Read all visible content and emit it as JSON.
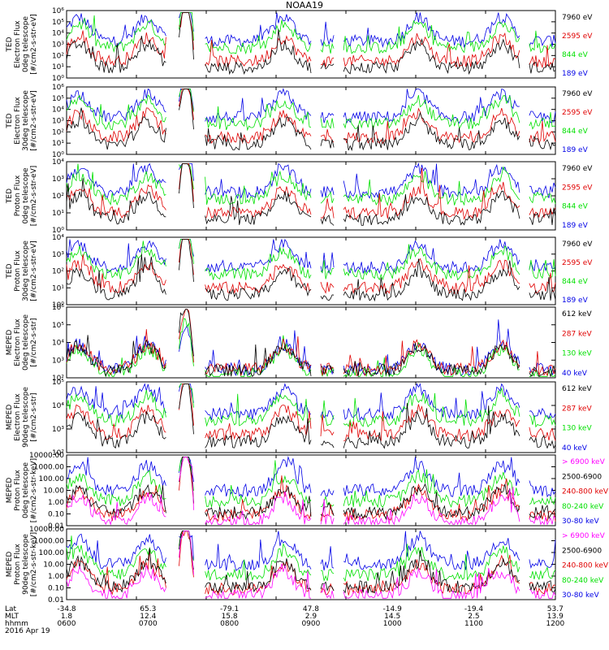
{
  "title": "NOAA19",
  "colors": {
    "black": "#000000",
    "red": "#e00000",
    "green": "#00e000",
    "blue": "#0000e6",
    "magenta": "#ff00ff"
  },
  "footer": {
    "rows": [
      {
        "label": "Lat",
        "values": [
          "-34.8",
          "65.3",
          "-79.1",
          "47.8",
          "-14.9",
          "-19.4",
          "53.7"
        ]
      },
      {
        "label": "MLT",
        "values": [
          "1.8",
          "12.4",
          "15.8",
          "2.9",
          "14.5",
          "2.5",
          "13.9"
        ]
      },
      {
        "label": "hhmm",
        "values": [
          "0600",
          "0700",
          "0800",
          "0900",
          "1000",
          "1100",
          "1200"
        ]
      }
    ],
    "date": "2016 Apr 19"
  },
  "chart_data": [
    {
      "type": "line",
      "ylabel_lines": [
        "TED",
        "Electron Flux",
        "0deg telescope",
        "[#/cm2-s-str-eV]"
      ],
      "yticks": [
        "10⁰",
        "10¹",
        "10²",
        "10³",
        "10⁴",
        "10⁵",
        "10⁶"
      ],
      "ylim": [
        1,
        1000000
      ],
      "yscale": "log",
      "series": [
        {
          "name": "7960 eV",
          "color": "#000000"
        },
        {
          "name": "2595 eV",
          "color": "#e00000"
        },
        {
          "name": "844 eV",
          "color": "#00e000"
        },
        {
          "name": "189 eV",
          "color": "#0000e6"
        }
      ]
    },
    {
      "type": "line",
      "ylabel_lines": [
        "TED",
        "Electron Flux",
        "30deg telescope",
        "[#/cm2-s-str-eV]"
      ],
      "yticks": [
        "10⁰",
        "10¹",
        "10²",
        "10³",
        "10⁴",
        "10⁵",
        "10⁶"
      ],
      "ylim": [
        1,
        1000000
      ],
      "yscale": "log",
      "series": [
        {
          "name": "7960 eV",
          "color": "#000000"
        },
        {
          "name": "2595 eV",
          "color": "#e00000"
        },
        {
          "name": "844 eV",
          "color": "#00e000"
        },
        {
          "name": "189 eV",
          "color": "#0000e6"
        }
      ]
    },
    {
      "type": "line",
      "ylabel_lines": [
        "TED",
        "Proton Flux",
        "0deg telescope",
        "[#/cm2-s-str-eV]"
      ],
      "yticks": [
        "10⁰",
        "10¹",
        "10²",
        "10³",
        "10⁴"
      ],
      "ylim": [
        1,
        10000
      ],
      "yscale": "log",
      "series": [
        {
          "name": "7960 eV",
          "color": "#000000"
        },
        {
          "name": "2595 eV",
          "color": "#e00000"
        },
        {
          "name": "844 eV",
          "color": "#00e000"
        },
        {
          "name": "189 eV",
          "color": "#0000e6"
        }
      ]
    },
    {
      "type": "line",
      "ylabel_lines": [
        "TED",
        "Proton Flux",
        "30deg telescope",
        "[#/cm2-s-str-eV]"
      ],
      "yticks": [
        "10⁰",
        "10¹",
        "10²",
        "10³",
        "10⁴"
      ],
      "ylim": [
        1,
        10000
      ],
      "yscale": "log",
      "series": [
        {
          "name": "7960 eV",
          "color": "#000000"
        },
        {
          "name": "2595 eV",
          "color": "#e00000"
        },
        {
          "name": "844 eV",
          "color": "#00e000"
        },
        {
          "name": "189 eV",
          "color": "#0000e6"
        }
      ]
    },
    {
      "type": "line",
      "ylabel_lines": [
        "MEPED",
        "Electron Flux",
        "0deg telescope",
        "[#/cm2-s-str]"
      ],
      "yticks": [
        "10²",
        "10³",
        "10⁴",
        "10⁵",
        "10⁶"
      ],
      "ylim": [
        100,
        1000000
      ],
      "yscale": "log",
      "series": [
        {
          "name": "612 keV",
          "color": "#000000"
        },
        {
          "name": "287 keV",
          "color": "#e00000"
        },
        {
          "name": "130 keV",
          "color": "#00e000"
        },
        {
          "name": "40 keV",
          "color": "#0000e6"
        }
      ]
    },
    {
      "type": "line",
      "ylabel_lines": [
        "MEPED",
        "Electron Flux",
        "90deg telescope",
        "[#/cm2-s-str]"
      ],
      "yticks": [
        "10²",
        "10³",
        "10⁴",
        "10⁵"
      ],
      "ylim": [
        100,
        100000
      ],
      "yscale": "log",
      "series": [
        {
          "name": "612 keV",
          "color": "#000000"
        },
        {
          "name": "287 keV",
          "color": "#e00000"
        },
        {
          "name": "130 keV",
          "color": "#00e000"
        },
        {
          "name": "40 keV",
          "color": "#0000e6"
        }
      ]
    },
    {
      "type": "line",
      "ylabel_lines": [
        "MEPED",
        "Proton Flux",
        "0deg telescope",
        "[#/cm2-s-str-keV]"
      ],
      "yticks": [
        "0.01",
        "0.10",
        "1.00",
        "10.00",
        "100.00",
        "1000.00",
        "10000.00"
      ],
      "ylim": [
        0.01,
        10000
      ],
      "yscale": "log",
      "series": [
        {
          "name": "> 6900 keV",
          "color": "#ff00ff"
        },
        {
          "name": "2500-6900",
          "color": "#000000"
        },
        {
          "name": "240-800 keV",
          "color": "#e00000"
        },
        {
          "name": "80-240 keV",
          "color": "#00e000"
        },
        {
          "name": "30-80 keV",
          "color": "#0000e6"
        }
      ]
    },
    {
      "type": "line",
      "ylabel_lines": [
        "MEPED",
        "Proton Flux",
        "90deg telescope",
        "[#/cm2-s-str-keV]"
      ],
      "yticks": [
        "0.01",
        "0.10",
        "1.00",
        "10.00",
        "100.00",
        "1000.00",
        "10000.00"
      ],
      "ylim": [
        0.01,
        10000
      ],
      "yscale": "log",
      "series": [
        {
          "name": "> 6900 keV",
          "color": "#ff00ff"
        },
        {
          "name": "2500-6900",
          "color": "#000000"
        },
        {
          "name": "240-800 keV",
          "color": "#e00000"
        },
        {
          "name": "80-240 keV",
          "color": "#00e000"
        },
        {
          "name": "30-80 keV",
          "color": "#0000e6"
        }
      ]
    }
  ]
}
